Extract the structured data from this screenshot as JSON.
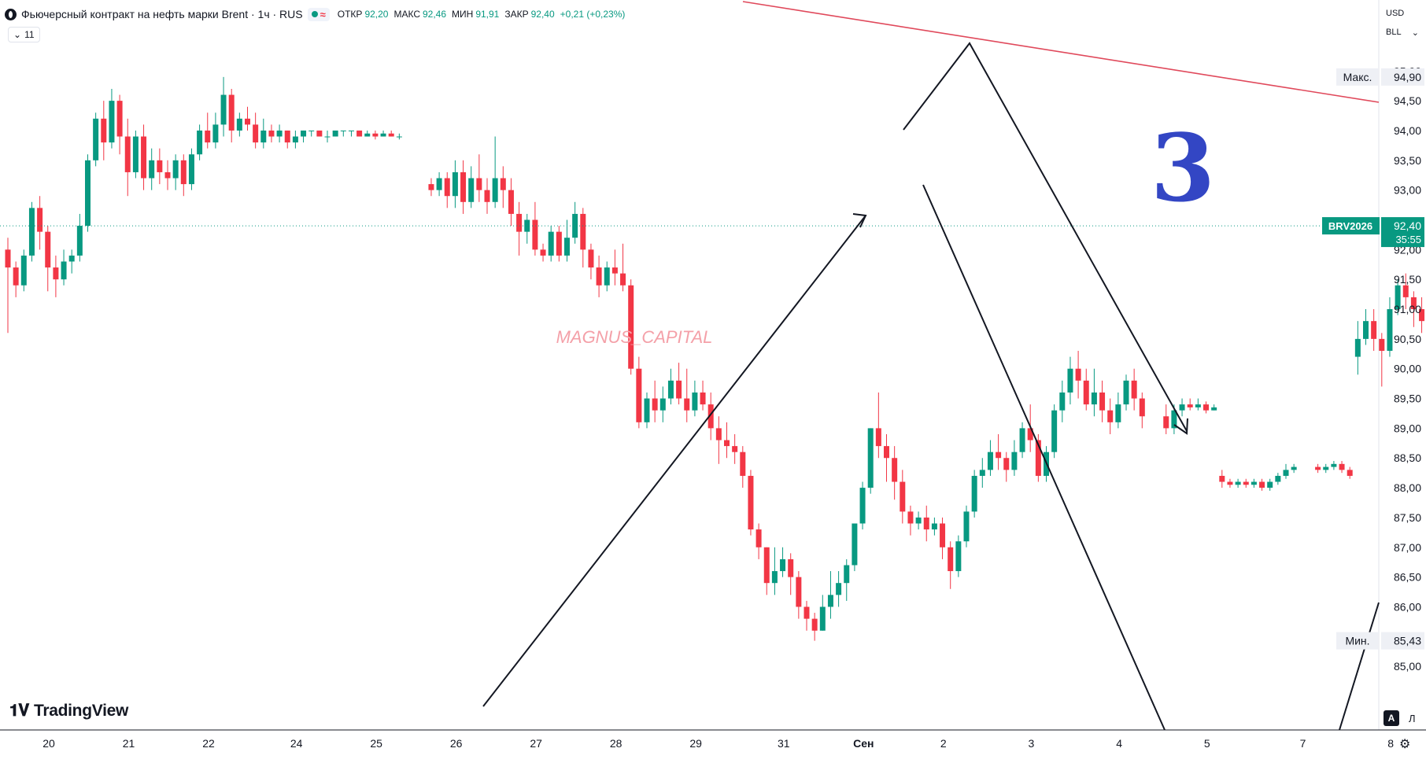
{
  "header": {
    "title": "Фьючерсный контракт на нефть марки Brent · 1ч · RUS",
    "ohlc": [
      {
        "label": "ОТКР",
        "value": "92,20"
      },
      {
        "label": "МАКС",
        "value": "92,46"
      },
      {
        "label": "МИН",
        "value": "91,91"
      },
      {
        "label": "ЗАКР",
        "value": "92,40"
      }
    ],
    "change": "+0,21 (+0,23%)",
    "indicator_count": "11",
    "currency": "USD",
    "unit": "BLL"
  },
  "watermark": "MAGNUS_CAPITAL",
  "wave_label": "3",
  "branding": {
    "logo": "TradingView",
    "auto_label": "A",
    "log_label": "Л"
  },
  "colors": {
    "up": "#089981",
    "down": "#f23645",
    "wave_label": "#3346c4",
    "trendline": "#e0495b",
    "watermark": "#f4a0a8"
  },
  "chart_data": {
    "type": "candlestick",
    "symbol": "BRV2026",
    "interval": "1ч",
    "last_price": "92,40",
    "countdown": "35:55",
    "high_label": {
      "label": "Макс.",
      "value": "94,90"
    },
    "low_label": {
      "label": "Мин.",
      "value": "85,43"
    },
    "ylim": [
      84.5,
      95.4
    ],
    "y_ticks": [
      "85,00",
      "86,00",
      "86,50",
      "87,00",
      "87,50",
      "88,00",
      "88,50",
      "89,00",
      "89,50",
      "90,00",
      "90,50",
      "91,00",
      "91,50",
      "92,00",
      "93,00",
      "93,50",
      "94,00",
      "94,50",
      "95,00"
    ],
    "x_ticks": [
      "20",
      "21",
      "22",
      "24",
      "25",
      "26",
      "27",
      "28",
      "29",
      "31",
      "Сен",
      "2",
      "3",
      "4",
      "5",
      "7",
      "8"
    ],
    "x_tick_index": [
      0,
      10,
      20,
      31,
      41,
      51,
      61,
      71,
      81,
      92,
      102,
      112,
      123,
      134,
      145,
      157,
      168
    ],
    "candles": [
      [
        92.0,
        91.7,
        92.2,
        90.6
      ],
      [
        91.7,
        91.4,
        91.8,
        91.2
      ],
      [
        91.4,
        91.9,
        92.0,
        91.3
      ],
      [
        91.9,
        92.7,
        92.8,
        91.8
      ],
      [
        92.7,
        92.3,
        92.9,
        92.0
      ],
      [
        92.3,
        91.7,
        92.4,
        91.3
      ],
      [
        91.7,
        91.5,
        91.9,
        91.2
      ],
      [
        91.5,
        91.8,
        92.0,
        91.4
      ],
      [
        91.8,
        91.9,
        92.0,
        91.6
      ],
      [
        91.9,
        92.4,
        92.6,
        91.8
      ],
      [
        92.4,
        93.5,
        93.6,
        92.3
      ],
      [
        93.5,
        94.2,
        94.3,
        93.4
      ],
      [
        94.2,
        93.8,
        94.5,
        93.5
      ],
      [
        93.8,
        94.5,
        94.7,
        93.7
      ],
      [
        94.5,
        93.9,
        94.6,
        93.6
      ],
      [
        93.9,
        93.3,
        94.2,
        92.9
      ],
      [
        93.3,
        93.9,
        94.0,
        93.2
      ],
      [
        93.9,
        93.2,
        94.1,
        93.0
      ],
      [
        93.2,
        93.5,
        93.7,
        93.0
      ],
      [
        93.5,
        93.3,
        93.7,
        93.1
      ],
      [
        93.3,
        93.2,
        93.5,
        93.0
      ],
      [
        93.2,
        93.5,
        93.6,
        93.0
      ],
      [
        93.5,
        93.1,
        93.6,
        92.9
      ],
      [
        93.1,
        93.6,
        93.7,
        93.0
      ],
      [
        93.6,
        94.0,
        94.1,
        93.5
      ],
      [
        94.0,
        93.8,
        94.3,
        93.7
      ],
      [
        93.8,
        94.1,
        94.3,
        93.7
      ],
      [
        94.1,
        94.6,
        94.9,
        93.9
      ],
      [
        94.6,
        94.0,
        94.7,
        93.8
      ],
      [
        94.0,
        94.2,
        94.3,
        93.9
      ],
      [
        94.2,
        94.1,
        94.4,
        94.0
      ],
      [
        94.1,
        93.8,
        94.3,
        93.7
      ],
      [
        93.8,
        94.0,
        94.2,
        93.7
      ],
      [
        94.0,
        93.9,
        94.1,
        93.8
      ],
      [
        93.9,
        94.0,
        94.1,
        93.8
      ],
      [
        94.0,
        93.8,
        94.0,
        93.7
      ],
      [
        93.8,
        93.9,
        94.0,
        93.7
      ],
      [
        93.9,
        94.0,
        94.0,
        93.8
      ],
      [
        94.0,
        94.0,
        94.0,
        93.9
      ],
      [
        94.0,
        93.9,
        94.0,
        93.9
      ],
      [
        93.9,
        93.9,
        94.0,
        93.8
      ],
      [
        93.9,
        94.0,
        94.0,
        93.9
      ],
      [
        94.0,
        94.0,
        94.0,
        93.9
      ],
      [
        94.0,
        94.0,
        94.0,
        93.9
      ],
      [
        94.0,
        93.9,
        94.0,
        93.9
      ],
      [
        93.9,
        93.95,
        94.0,
        93.9
      ],
      [
        93.95,
        93.9,
        94.0,
        93.85
      ],
      [
        93.9,
        93.95,
        94.0,
        93.9
      ],
      [
        93.95,
        93.9,
        94.0,
        93.9
      ],
      [
        93.9,
        93.9,
        93.95,
        93.85
      ],
      [
        93.1,
        93.0,
        93.2,
        92.9
      ],
      [
        93.0,
        93.2,
        93.3,
        92.9
      ],
      [
        93.2,
        92.9,
        93.3,
        92.7
      ],
      [
        92.9,
        93.3,
        93.5,
        92.7
      ],
      [
        93.3,
        92.8,
        93.5,
        92.6
      ],
      [
        92.8,
        93.2,
        93.4,
        92.7
      ],
      [
        93.2,
        93.0,
        93.6,
        92.8
      ],
      [
        93.0,
        92.8,
        93.2,
        92.6
      ],
      [
        92.8,
        93.2,
        93.9,
        92.7
      ],
      [
        93.2,
        93.0,
        93.4,
        92.7
      ],
      [
        93.0,
        92.6,
        93.2,
        92.4
      ],
      [
        92.6,
        92.3,
        92.8,
        91.9
      ],
      [
        92.3,
        92.5,
        92.6,
        92.1
      ],
      [
        92.5,
        92.0,
        92.8,
        91.9
      ],
      [
        92.0,
        91.9,
        92.1,
        91.8
      ],
      [
        91.9,
        92.3,
        92.4,
        91.8
      ],
      [
        92.3,
        91.9,
        92.4,
        91.8
      ],
      [
        91.9,
        92.2,
        92.5,
        91.8
      ],
      [
        92.2,
        92.6,
        92.8,
        92.1
      ],
      [
        92.6,
        92.0,
        92.7,
        91.7
      ],
      [
        92.0,
        91.7,
        92.1,
        91.5
      ],
      [
        91.7,
        91.4,
        91.9,
        91.2
      ],
      [
        91.4,
        91.7,
        91.8,
        91.3
      ],
      [
        91.7,
        91.6,
        92.0,
        91.4
      ],
      [
        91.6,
        91.4,
        92.1,
        91.3
      ],
      [
        91.4,
        90.0,
        91.5,
        89.9
      ],
      [
        90.0,
        89.1,
        90.2,
        89.0
      ],
      [
        89.1,
        89.5,
        89.6,
        89.0
      ],
      [
        89.5,
        89.3,
        89.8,
        89.1
      ],
      [
        89.3,
        89.5,
        89.7,
        89.1
      ],
      [
        89.5,
        89.8,
        90.0,
        89.4
      ],
      [
        89.8,
        89.5,
        90.1,
        89.4
      ],
      [
        89.5,
        89.3,
        90.0,
        89.1
      ],
      [
        89.3,
        89.6,
        89.8,
        89.2
      ],
      [
        89.6,
        89.4,
        89.8,
        89.3
      ],
      [
        89.4,
        89.0,
        89.6,
        88.8
      ],
      [
        89.0,
        88.8,
        89.2,
        88.4
      ],
      [
        88.8,
        88.7,
        89.1,
        88.5
      ],
      [
        88.7,
        88.6,
        88.9,
        88.4
      ],
      [
        88.6,
        88.2,
        88.7,
        88.0
      ],
      [
        88.2,
        87.3,
        88.3,
        87.2
      ],
      [
        87.3,
        87.0,
        87.4,
        86.8
      ],
      [
        87.0,
        86.4,
        87.0,
        86.2
      ],
      [
        86.4,
        86.6,
        87.0,
        86.2
      ],
      [
        86.6,
        86.8,
        87.0,
        86.5
      ],
      [
        86.8,
        86.5,
        86.9,
        86.2
      ],
      [
        86.5,
        86.0,
        86.6,
        85.8
      ],
      [
        86.0,
        85.8,
        86.1,
        85.6
      ],
      [
        85.8,
        85.6,
        85.9,
        85.43
      ],
      [
        85.6,
        86.0,
        86.2,
        85.6
      ],
      [
        86.0,
        86.2,
        86.6,
        85.8
      ],
      [
        86.2,
        86.4,
        86.6,
        86.0
      ],
      [
        86.4,
        86.7,
        86.8,
        86.1
      ],
      [
        86.7,
        87.4,
        87.4,
        86.6
      ],
      [
        87.4,
        88.0,
        88.1,
        87.3
      ],
      [
        88.0,
        89.0,
        89.0,
        87.9
      ],
      [
        89.0,
        88.7,
        89.6,
        88.5
      ],
      [
        88.7,
        88.5,
        88.9,
        88.1
      ],
      [
        88.5,
        88.1,
        88.7,
        87.8
      ],
      [
        88.1,
        87.6,
        88.3,
        87.4
      ],
      [
        87.6,
        87.4,
        87.7,
        87.2
      ],
      [
        87.4,
        87.5,
        87.6,
        87.3
      ],
      [
        87.5,
        87.3,
        87.7,
        87.1
      ],
      [
        87.3,
        87.4,
        87.5,
        87.2
      ],
      [
        87.4,
        87.0,
        87.5,
        86.8
      ],
      [
        87.0,
        86.6,
        87.1,
        86.3
      ],
      [
        86.6,
        87.1,
        87.2,
        86.5
      ],
      [
        87.1,
        87.6,
        87.7,
        87.0
      ],
      [
        87.6,
        88.2,
        88.3,
        87.5
      ],
      [
        88.2,
        88.3,
        88.5,
        88.0
      ],
      [
        88.3,
        88.6,
        88.8,
        88.2
      ],
      [
        88.6,
        88.5,
        88.9,
        88.3
      ],
      [
        88.5,
        88.3,
        88.6,
        88.1
      ],
      [
        88.3,
        88.6,
        88.8,
        88.2
      ],
      [
        88.6,
        89.0,
        89.1,
        88.5
      ],
      [
        89.0,
        88.8,
        89.4,
        88.6
      ],
      [
        88.8,
        88.2,
        88.9,
        88.1
      ],
      [
        88.2,
        88.6,
        88.7,
        88.1
      ],
      [
        88.6,
        89.3,
        89.4,
        88.5
      ],
      [
        89.3,
        89.6,
        89.8,
        89.1
      ]
    ],
    "candles_tail": [
      [
        89.6,
        90.0,
        90.2,
        89.4
      ],
      [
        90.0,
        89.8,
        90.3,
        89.5
      ],
      [
        89.8,
        89.4,
        90.0,
        89.3
      ],
      [
        89.4,
        89.6,
        90.0,
        89.2
      ],
      [
        89.6,
        89.3,
        89.8,
        89.1
      ],
      [
        89.3,
        89.1,
        89.5,
        88.9
      ],
      [
        89.1,
        89.4,
        89.6,
        89.0
      ],
      [
        89.4,
        89.8,
        89.9,
        89.3
      ],
      [
        89.8,
        89.5,
        90.0,
        89.3
      ],
      [
        89.5,
        89.2,
        89.6,
        89.0
      ],
      [
        89.2,
        89.0,
        89.4,
        88.9
      ],
      [
        89.0,
        89.3,
        89.4,
        88.9
      ],
      [
        89.3,
        89.4,
        89.5,
        89.2
      ],
      [
        89.4,
        89.35,
        89.5,
        89.3
      ],
      [
        89.35,
        89.4,
        89.5,
        89.3
      ],
      [
        89.4,
        89.3,
        89.45,
        89.25
      ],
      [
        89.3,
        89.35,
        89.4,
        89.3
      ],
      [
        88.2,
        88.1,
        88.3,
        88.0
      ],
      [
        88.1,
        88.05,
        88.15,
        88.0
      ],
      [
        88.05,
        88.1,
        88.15,
        88.0
      ],
      [
        88.1,
        88.05,
        88.15,
        88.0
      ],
      [
        88.05,
        88.1,
        88.15,
        88.0
      ],
      [
        88.1,
        88.0,
        88.15,
        87.95
      ],
      [
        88.0,
        88.1,
        88.15,
        87.95
      ],
      [
        88.1,
        88.2,
        88.25,
        88.05
      ],
      [
        88.2,
        88.3,
        88.4,
        88.15
      ],
      [
        88.3,
        88.35,
        88.4,
        88.25
      ],
      [
        88.35,
        88.3,
        88.4,
        88.25
      ],
      [
        88.3,
        88.35,
        88.4,
        88.25
      ],
      [
        88.35,
        88.4,
        88.45,
        88.3
      ],
      [
        88.4,
        88.3,
        88.45,
        88.25
      ],
      [
        88.3,
        88.2,
        88.35,
        88.15
      ],
      [
        90.2,
        90.5,
        90.8,
        89.9
      ],
      [
        90.5,
        90.8,
        91.0,
        90.4
      ],
      [
        90.8,
        90.5,
        91.0,
        90.3
      ],
      [
        90.5,
        90.3,
        90.6,
        89.7
      ],
      [
        90.3,
        91.0,
        91.2,
        90.2
      ],
      [
        91.0,
        91.4,
        91.5,
        90.9
      ],
      [
        91.4,
        91.2,
        91.6,
        91.0
      ],
      [
        91.2,
        91.0,
        91.3,
        90.7
      ],
      [
        91.0,
        90.8,
        91.2,
        90.6
      ],
      [
        90.8,
        90.5,
        91.0,
        90.3
      ],
      [
        90.5,
        90.4,
        90.8,
        90.2
      ],
      [
        90.4,
        90.3,
        90.6,
        90.1
      ],
      [
        90.3,
        90.5,
        90.6,
        90.2
      ],
      [
        90.5,
        90.8,
        90.9,
        90.4
      ],
      [
        90.8,
        91.5,
        91.7,
        90.7
      ],
      [
        91.5,
        91.2,
        91.6,
        90.9
      ],
      [
        91.2,
        91.6,
        91.8,
        91.1
      ],
      [
        91.6,
        92.0,
        92.2,
        91.5
      ],
      [
        92.0,
        92.6,
        92.7,
        91.9
      ],
      [
        92.6,
        92.4,
        92.7,
        92.2
      ],
      [
        92.4,
        92.2,
        92.5,
        92.0
      ],
      [
        92.2,
        92.2,
        92.46,
        91.91
      ],
      [
        92.2,
        92.4,
        92.46,
        91.91
      ]
    ]
  }
}
